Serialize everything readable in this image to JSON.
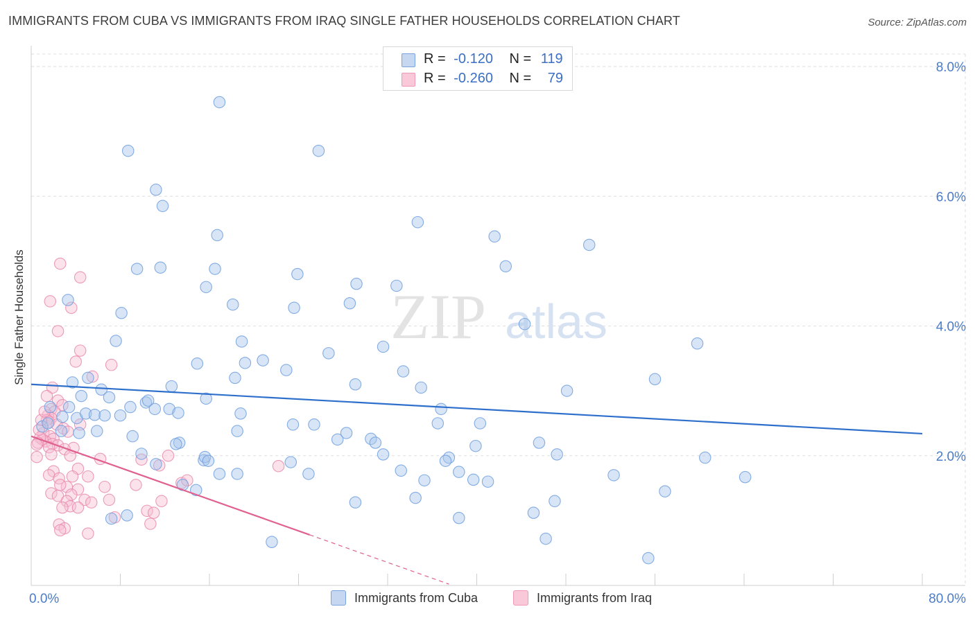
{
  "header": {
    "title": "IMMIGRANTS FROM CUBA VS IMMIGRANTS FROM IRAQ SINGLE FATHER HOUSEHOLDS CORRELATION CHART",
    "source": "Source: ZipAtlas.com"
  },
  "watermark": {
    "zip": "ZIP",
    "atlas": "atlas"
  },
  "legend": {
    "cuba": {
      "r_label": "R =",
      "r_value": "-0.120",
      "n_label": "N =",
      "n_value": "119"
    },
    "iraq": {
      "r_label": "R =",
      "r_value": "-0.260",
      "n_label": "N =",
      "n_value": "79"
    }
  },
  "colors": {
    "cuba_fill": "#a9c5ec",
    "cuba_stroke": "#6f9fdf",
    "cuba_line": "#2e6fcc",
    "iraq_fill": "#f6bfd2",
    "iraq_stroke": "#e98aab",
    "iraq_line": "#e0608f",
    "tick": "#4a7cc9",
    "grid": "#dddddd"
  },
  "chart_data": {
    "type": "scatter",
    "title": "IMMIGRANTS FROM CUBA VS IMMIGRANTS FROM IRAQ SINGLE FATHER HOUSEHOLDS CORRELATION CHART",
    "xlabel": "",
    "ylabel": "Single Father Households",
    "xlim": [
      0,
      80
    ],
    "ylim": [
      0,
      8.4
    ],
    "x_tick_labels": [
      "0.0%",
      "80.0%"
    ],
    "y_ticks": [
      2,
      4,
      6,
      8
    ],
    "y_tick_labels": [
      "2.0%",
      "4.0%",
      "6.0%",
      "8.0%"
    ],
    "legend_position": "bottom",
    "series": [
      {
        "name": "Immigrants from Cuba",
        "color": "#6f9fdf",
        "r": -0.12,
        "n": 119,
        "trend": {
          "x": [
            0,
            80
          ],
          "y": [
            3.1,
            2.34
          ]
        },
        "points": [
          [
            16.9,
            7.45
          ],
          [
            8.7,
            6.7
          ],
          [
            25.8,
            6.7
          ],
          [
            11.2,
            6.1
          ],
          [
            11.8,
            5.85
          ],
          [
            34.7,
            5.6
          ],
          [
            16.7,
            5.4
          ],
          [
            41.6,
            5.38
          ],
          [
            50.1,
            5.25
          ],
          [
            9.5,
            4.88
          ],
          [
            11.6,
            4.9
          ],
          [
            16.5,
            4.88
          ],
          [
            23.9,
            4.8
          ],
          [
            42.6,
            4.92
          ],
          [
            15.7,
            4.6
          ],
          [
            29.2,
            4.65
          ],
          [
            32.8,
            4.62
          ],
          [
            3.3,
            4.4
          ],
          [
            8.1,
            4.2
          ],
          [
            18.1,
            4.33
          ],
          [
            23.6,
            4.28
          ],
          [
            28.6,
            4.35
          ],
          [
            44.3,
            4.03
          ],
          [
            7.6,
            3.77
          ],
          [
            18.9,
            3.76
          ],
          [
            26.7,
            3.58
          ],
          [
            31.6,
            3.68
          ],
          [
            59.8,
            3.73
          ],
          [
            14.9,
            3.42
          ],
          [
            19.2,
            3.43
          ],
          [
            20.8,
            3.47
          ],
          [
            22.9,
            3.32
          ],
          [
            35.0,
            3.05
          ],
          [
            56.0,
            3.18
          ],
          [
            5.1,
            3.2
          ],
          [
            3.7,
            3.13
          ],
          [
            6.3,
            3.02
          ],
          [
            12.6,
            3.07
          ],
          [
            18.3,
            3.2
          ],
          [
            29.1,
            3.1
          ],
          [
            33.4,
            3.3
          ],
          [
            48.1,
            3.0
          ],
          [
            1.7,
            2.75
          ],
          [
            3.4,
            2.75
          ],
          [
            4.5,
            2.92
          ],
          [
            7.0,
            2.9
          ],
          [
            8.9,
            2.75
          ],
          [
            10.3,
            2.82
          ],
          [
            10.5,
            2.85
          ],
          [
            11.1,
            2.72
          ],
          [
            12.4,
            2.72
          ],
          [
            13.2,
            2.66
          ],
          [
            15.7,
            2.88
          ],
          [
            18.8,
            2.65
          ],
          [
            36.8,
            2.72
          ],
          [
            2.8,
            2.6
          ],
          [
            4.1,
            2.58
          ],
          [
            4.9,
            2.65
          ],
          [
            5.7,
            2.63
          ],
          [
            6.6,
            2.62
          ],
          [
            8.0,
            2.62
          ],
          [
            1.0,
            2.45
          ],
          [
            1.5,
            2.5
          ],
          [
            2.7,
            2.38
          ],
          [
            4.3,
            2.35
          ],
          [
            5.9,
            2.38
          ],
          [
            9.1,
            2.3
          ],
          [
            18.5,
            2.38
          ],
          [
            23.5,
            2.48
          ],
          [
            25.4,
            2.48
          ],
          [
            27.5,
            2.25
          ],
          [
            28.3,
            2.35
          ],
          [
            30.5,
            2.26
          ],
          [
            30.9,
            2.2
          ],
          [
            36.5,
            2.5
          ],
          [
            40.3,
            2.5
          ],
          [
            45.6,
            2.2
          ],
          [
            13.3,
            2.2
          ],
          [
            9.9,
            2.03
          ],
          [
            13.0,
            2.18
          ],
          [
            15.5,
            1.93
          ],
          [
            15.6,
            1.98
          ],
          [
            15.9,
            1.92
          ],
          [
            23.3,
            1.9
          ],
          [
            31.6,
            2.02
          ],
          [
            37.5,
            1.97
          ],
          [
            37.2,
            1.92
          ],
          [
            39.9,
            2.15
          ],
          [
            47.2,
            2.02
          ],
          [
            60.5,
            1.97
          ],
          [
            11.2,
            1.87
          ],
          [
            16.9,
            1.72
          ],
          [
            18.5,
            1.72
          ],
          [
            24.9,
            1.72
          ],
          [
            33.2,
            1.77
          ],
          [
            35.3,
            1.62
          ],
          [
            38.4,
            1.75
          ],
          [
            41.0,
            1.6
          ],
          [
            52.3,
            1.7
          ],
          [
            64.1,
            1.67
          ],
          [
            13.6,
            1.55
          ],
          [
            14.8,
            1.47
          ],
          [
            29.1,
            1.28
          ],
          [
            34.5,
            1.35
          ],
          [
            39.7,
            1.63
          ],
          [
            45.1,
            1.12
          ],
          [
            47.0,
            1.3
          ],
          [
            56.9,
            1.45
          ],
          [
            8.6,
            1.08
          ],
          [
            7.2,
            1.03
          ],
          [
            38.4,
            1.04
          ],
          [
            21.6,
            0.67
          ],
          [
            46.2,
            0.72
          ],
          [
            55.4,
            0.42
          ]
        ]
      },
      {
        "name": "Immigrants from Iraq",
        "color": "#e98aab",
        "r": -0.26,
        "n": 79,
        "trend": {
          "x": [
            0,
            25
          ],
          "y": [
            2.3,
            0.78
          ]
        },
        "trend_dashed": {
          "x": [
            25,
            37.5
          ],
          "y": [
            0.78,
            0.02
          ]
        },
        "points": [
          [
            2.6,
            4.96
          ],
          [
            4.4,
            4.75
          ],
          [
            1.7,
            4.38
          ],
          [
            3.6,
            4.28
          ],
          [
            2.4,
            3.92
          ],
          [
            4.4,
            3.62
          ],
          [
            4.0,
            3.45
          ],
          [
            7.2,
            3.4
          ],
          [
            5.5,
            3.22
          ],
          [
            1.9,
            3.05
          ],
          [
            1.4,
            2.92
          ],
          [
            2.4,
            2.85
          ],
          [
            2.8,
            2.78
          ],
          [
            1.8,
            2.72
          ],
          [
            2.1,
            2.68
          ],
          [
            1.5,
            2.62
          ],
          [
            1.8,
            2.58
          ],
          [
            1.4,
            2.55
          ],
          [
            1.6,
            2.52
          ],
          [
            2.3,
            2.48
          ],
          [
            2.9,
            2.42
          ],
          [
            3.3,
            2.37
          ],
          [
            1.1,
            2.35
          ],
          [
            1.7,
            2.3
          ],
          [
            2.0,
            2.26
          ],
          [
            1.3,
            2.22
          ],
          [
            1.9,
            2.18
          ],
          [
            2.4,
            2.16
          ],
          [
            1.6,
            2.13
          ],
          [
            1.0,
            2.25
          ],
          [
            0.8,
            2.28
          ],
          [
            0.7,
            2.4
          ],
          [
            0.9,
            2.55
          ],
          [
            1.2,
            2.68
          ],
          [
            0.6,
            2.2
          ],
          [
            0.5,
            2.17
          ],
          [
            3.8,
            2.12
          ],
          [
            4.4,
            2.48
          ],
          [
            3.0,
            2.1
          ],
          [
            3.5,
            2.0
          ],
          [
            1.8,
            2.02
          ],
          [
            0.5,
            1.98
          ],
          [
            6.2,
            1.95
          ],
          [
            9.9,
            1.94
          ],
          [
            12.3,
            2.0
          ],
          [
            11.5,
            1.85
          ],
          [
            4.2,
            1.8
          ],
          [
            2.0,
            1.76
          ],
          [
            1.6,
            1.7
          ],
          [
            2.5,
            1.65
          ],
          [
            3.7,
            1.68
          ],
          [
            5.1,
            1.68
          ],
          [
            13.5,
            1.58
          ],
          [
            22.2,
            1.84
          ],
          [
            14.0,
            1.62
          ],
          [
            3.2,
            1.52
          ],
          [
            2.6,
            1.55
          ],
          [
            4.2,
            1.48
          ],
          [
            6.6,
            1.52
          ],
          [
            9.4,
            1.55
          ],
          [
            1.8,
            1.42
          ],
          [
            3.6,
            1.4
          ],
          [
            2.4,
            1.38
          ],
          [
            3.2,
            1.3
          ],
          [
            4.8,
            1.32
          ],
          [
            7.0,
            1.32
          ],
          [
            5.4,
            1.28
          ],
          [
            11.7,
            1.3
          ],
          [
            3.5,
            1.22
          ],
          [
            2.8,
            1.2
          ],
          [
            4.2,
            1.2
          ],
          [
            10.4,
            1.15
          ],
          [
            7.5,
            1.05
          ],
          [
            11.0,
            1.12
          ],
          [
            2.5,
            0.94
          ],
          [
            3.0,
            0.88
          ],
          [
            2.6,
            0.85
          ],
          [
            10.7,
            0.95
          ],
          [
            5.1,
            0.8
          ]
        ]
      }
    ]
  },
  "bottom_legend": {
    "cuba": "Immigrants from Cuba",
    "iraq": "Immigrants from Iraq"
  }
}
